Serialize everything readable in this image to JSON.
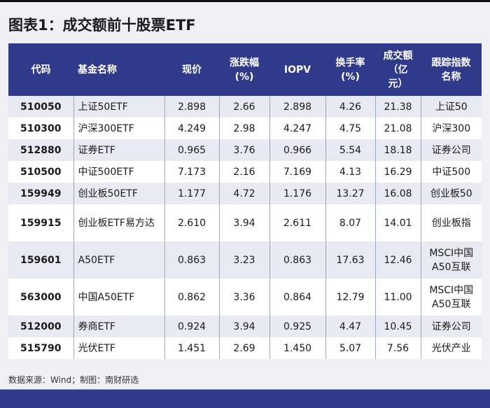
{
  "title": "图表1：成交额前十股票ETF",
  "table": {
    "headers": {
      "code": "代码",
      "name": "基金名称",
      "price": "现价",
      "change_l1": "涨跌幅",
      "change_l2": "(%)",
      "iopv": "IOPV",
      "turnover_l1": "换手率",
      "turnover_l2": "(%)",
      "volume_l1": "成交额",
      "volume_l2": "（亿",
      "volume_l3": "元）",
      "index_l1": "跟踪指数",
      "index_l2": "名称"
    },
    "rows": [
      {
        "code": "510050",
        "name": "上证50ETF",
        "price": "2.898",
        "change": "2.66",
        "iopv": "2.898",
        "turnover": "4.26",
        "volume": "21.38",
        "index": "上证50"
      },
      {
        "code": "510300",
        "name": "沪深300ETF",
        "price": "4.249",
        "change": "2.98",
        "iopv": "4.247",
        "turnover": "4.75",
        "volume": "21.08",
        "index": "沪深300"
      },
      {
        "code": "512880",
        "name": "证券ETF",
        "price": "0.965",
        "change": "3.76",
        "iopv": "0.966",
        "turnover": "5.54",
        "volume": "18.18",
        "index": "证券公司"
      },
      {
        "code": "510500",
        "name": "中证500ETF",
        "price": "7.173",
        "change": "2.16",
        "iopv": "7.169",
        "turnover": "4.13",
        "volume": "16.29",
        "index": "中证500"
      },
      {
        "code": "159949",
        "name": "创业板50ETF",
        "price": "1.177",
        "change": "4.72",
        "iopv": "1.176",
        "turnover": "13.27",
        "volume": "16.08",
        "index": "创业板50"
      },
      {
        "code": "159915",
        "name": "创业板ETF易方达",
        "price": "2.610",
        "change": "3.94",
        "iopv": "2.611",
        "turnover": "8.07",
        "volume": "14.01",
        "index": "创业板指"
      },
      {
        "code": "159601",
        "name": "A50ETF",
        "price": "0.863",
        "change": "3.23",
        "iopv": "0.863",
        "turnover": "17.63",
        "volume": "12.46",
        "index": "MSCI中国A50互联"
      },
      {
        "code": "563000",
        "name": "中国A50ETF",
        "price": "0.862",
        "change": "3.36",
        "iopv": "0.864",
        "turnover": "12.79",
        "volume": "11.00",
        "index": "MSCI中国A50互联"
      },
      {
        "code": "512000",
        "name": "券商ETF",
        "price": "0.924",
        "change": "3.94",
        "iopv": "0.925",
        "turnover": "4.47",
        "volume": "10.45",
        "index": "证券公司"
      },
      {
        "code": "515790",
        "name": "光伏ETF",
        "price": "1.451",
        "change": "2.69",
        "iopv": "1.450",
        "turnover": "5.07",
        "volume": "7.56",
        "index": "光伏产业"
      }
    ]
  },
  "source": "数据来源：Wind；制图：南财研选",
  "colors": {
    "header_bg": "#303a8b",
    "row_alt_bg": "#e9e9f4",
    "page_bg": "#f0eff4"
  }
}
